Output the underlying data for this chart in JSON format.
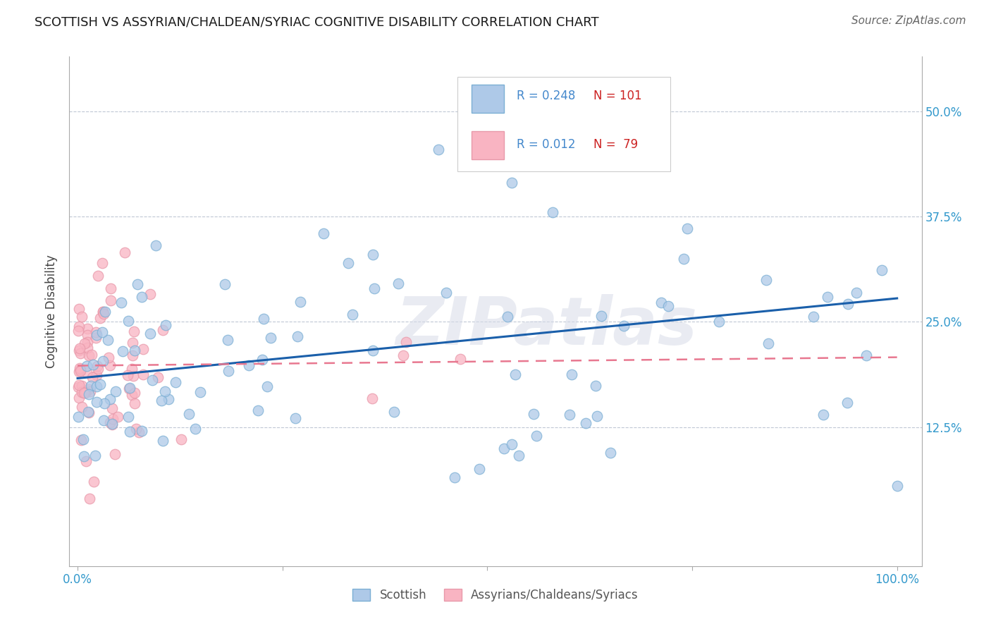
{
  "title": "SCOTTISH VS ASSYRIAN/CHALDEAN/SYRIAC COGNITIVE DISABILITY CORRELATION CHART",
  "source": "Source: ZipAtlas.com",
  "ylabel": "Cognitive Disability",
  "legend_label1": "Scottish",
  "legend_label2": "Assyrians/Chaldeans/Syriacs",
  "blue_face": "#aec9e8",
  "blue_edge": "#7bafd4",
  "pink_face": "#f9b4c2",
  "pink_edge": "#e899aa",
  "trend_blue": "#1a5faa",
  "trend_pink": "#e87890",
  "r_color": "#4488cc",
  "n_color": "#cc2222",
  "watermark": "ZIPatlas",
  "watermark_color": "#d8dce8"
}
